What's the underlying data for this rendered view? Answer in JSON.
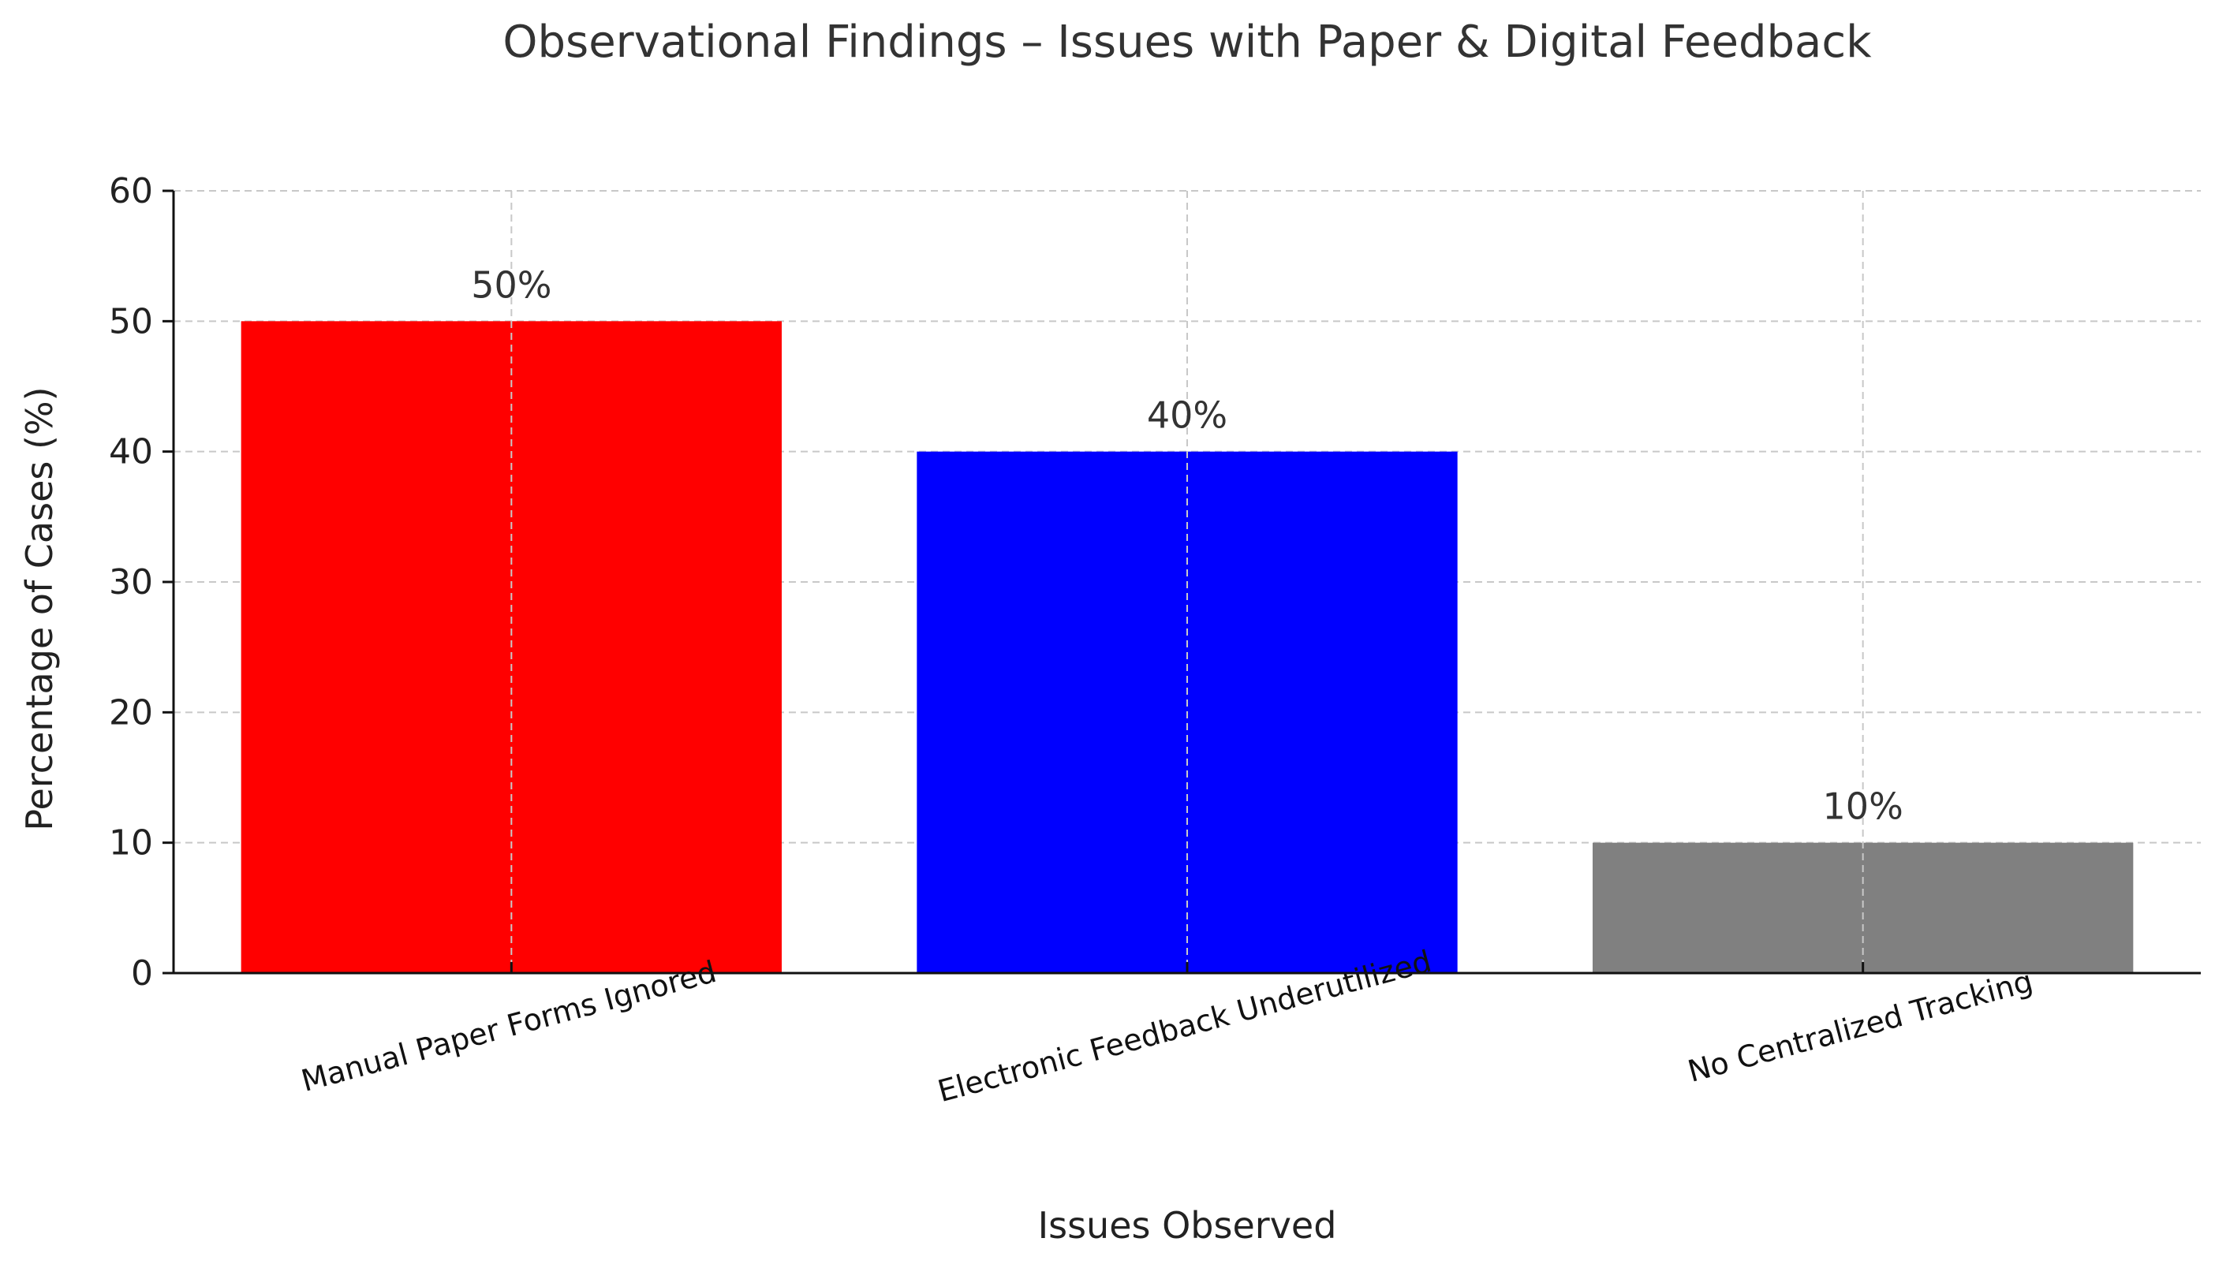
{
  "chart_data": {
    "type": "bar",
    "title": "Observational Findings – Issues with Paper & Digital Feedback",
    "xlabel": "Issues Observed",
    "ylabel": "Percentage of Cases (%)",
    "categories": [
      "Manual Paper Forms Ignored",
      "Electronic Feedback Underutilized",
      "No Centralized Tracking"
    ],
    "values": [
      50,
      40,
      10
    ],
    "data_labels": [
      "50%",
      "40%",
      "10%"
    ],
    "colors": [
      "#ff0000",
      "#0000ff",
      "#808080"
    ],
    "ylim": [
      0,
      60
    ],
    "yticks": [
      0,
      10,
      20,
      30,
      40,
      50,
      60
    ],
    "grid": true,
    "legend": "none"
  }
}
